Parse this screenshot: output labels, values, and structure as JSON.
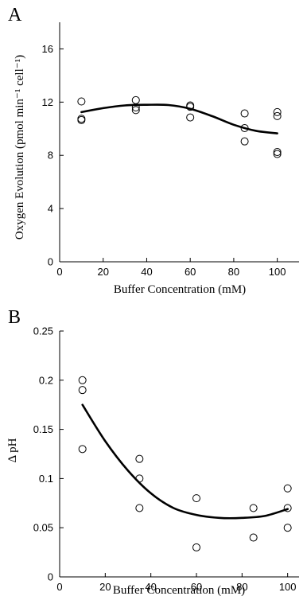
{
  "chart_data": [
    {
      "type": "scatter",
      "panel": "A",
      "xlabel": "Buffer Concentration (mM)",
      "ylabel": "Oxygen Evolution (pmol min⁻¹ cell⁻¹)",
      "xlim": [
        0,
        110
      ],
      "ylim": [
        0,
        18
      ],
      "xticks": [
        0,
        20,
        40,
        60,
        80,
        100
      ],
      "yticks": [
        0,
        4,
        8,
        12,
        16
      ],
      "grid": false,
      "series": [
        {
          "points": [
            [
              10,
              12.05
            ],
            [
              10,
              10.75
            ],
            [
              10,
              10.65
            ],
            [
              35,
              12.15
            ],
            [
              35,
              11.6
            ],
            [
              35,
              11.4
            ],
            [
              60,
              11.75
            ],
            [
              60,
              11.65
            ],
            [
              60,
              10.85
            ],
            [
              85,
              11.15
            ],
            [
              85,
              10.05
            ],
            [
              85,
              9.05
            ],
            [
              100,
              11.25
            ],
            [
              100,
              10.95
            ],
            [
              100,
              8.25
            ],
            [
              100,
              8.1
            ]
          ]
        }
      ],
      "fit_curve": [
        [
          10,
          11.25
        ],
        [
          20,
          11.55
        ],
        [
          30,
          11.75
        ],
        [
          40,
          11.8
        ],
        [
          50,
          11.78
        ],
        [
          60,
          11.5
        ],
        [
          70,
          10.95
        ],
        [
          80,
          10.3
        ],
        [
          90,
          9.85
        ],
        [
          100,
          9.65
        ]
      ]
    },
    {
      "type": "scatter",
      "panel": "B",
      "xlabel": "Buffer Concentration (mM)",
      "ylabel": "Δ pH",
      "xlim": [
        0,
        105
      ],
      "ylim": [
        0,
        0.25
      ],
      "xticks": [
        0,
        20,
        40,
        60,
        80,
        100
      ],
      "yticks": [
        0,
        0.05,
        0.1,
        0.15,
        0.2,
        0.25
      ],
      "grid": false,
      "series": [
        {
          "points": [
            [
              10,
              0.2
            ],
            [
              10,
              0.19
            ],
            [
              10,
              0.13
            ],
            [
              35,
              0.12
            ],
            [
              35,
              0.1
            ],
            [
              35,
              0.07
            ],
            [
              60,
              0.08
            ],
            [
              60,
              0.03
            ],
            [
              85,
              0.07
            ],
            [
              85,
              0.04
            ],
            [
              100,
              0.09
            ],
            [
              100,
              0.07
            ],
            [
              100,
              0.05
            ]
          ]
        }
      ],
      "fit_curve": [
        [
          10,
          0.175
        ],
        [
          20,
          0.138
        ],
        [
          30,
          0.108
        ],
        [
          40,
          0.085
        ],
        [
          50,
          0.07
        ],
        [
          60,
          0.063
        ],
        [
          70,
          0.06
        ],
        [
          80,
          0.06
        ],
        [
          90,
          0.062
        ],
        [
          100,
          0.069
        ]
      ]
    }
  ],
  "panels": [
    {
      "letter": "A",
      "xlabel": "Buffer Concentration (mM)",
      "ylabel": "Oxygen Evolution (pmol min⁻¹ cell⁻¹)",
      "ytick_labels": [
        "0",
        "4",
        "8",
        "12",
        "16"
      ],
      "xtick_labels": [
        "0",
        "20",
        "40",
        "60",
        "80",
        "100"
      ]
    },
    {
      "letter": "B",
      "xlabel": "Buffer Concentration (mM)",
      "ylabel": "Δ pH",
      "ytick_labels": [
        "0",
        "0.05",
        "0.1",
        "0.15",
        "0.2",
        "0.25"
      ],
      "xtick_labels": [
        "0",
        "20",
        "40",
        "60",
        "80",
        "100"
      ]
    }
  ]
}
